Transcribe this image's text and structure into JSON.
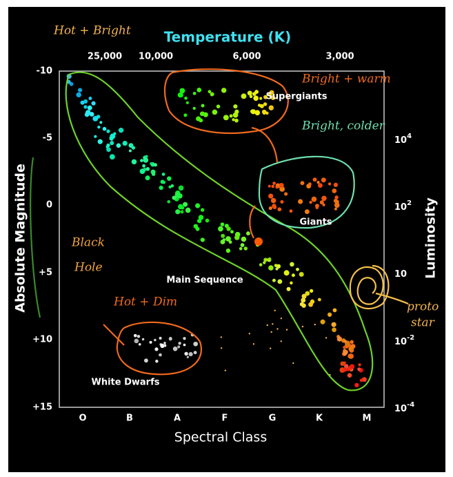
{
  "header": {
    "title": "Temperature (K)"
  },
  "axes": {
    "top_ticks": [
      "25,000",
      "10,000",
      "6,000",
      "3,000"
    ],
    "left_label": "Absolute Magnitude",
    "left_ticks": [
      "-10",
      "-5",
      "0",
      "+5",
      "+10",
      "+15"
    ],
    "right_label": "Luminosity",
    "right_ticks": [
      {
        "base": "10",
        "exp": "4"
      },
      {
        "base": "10",
        "exp": "2"
      },
      {
        "base": "10",
        "exp": ""
      },
      {
        "base": "10",
        "exp": "-2"
      },
      {
        "base": "10",
        "exp": "-4"
      }
    ],
    "bottom_label": "Spectral Class",
    "bottom_ticks": [
      "O",
      "B",
      "A",
      "F",
      "G",
      "K",
      "M"
    ]
  },
  "regions": [
    "Supergiants",
    "Giants",
    "Main Sequence",
    "White Dwarfs"
  ],
  "annotations": [
    "Hot + Bright",
    "Bright + warm",
    "Bright, colder",
    "Black",
    "Hole",
    "Hot + Dim",
    "proto",
    "star"
  ]
}
